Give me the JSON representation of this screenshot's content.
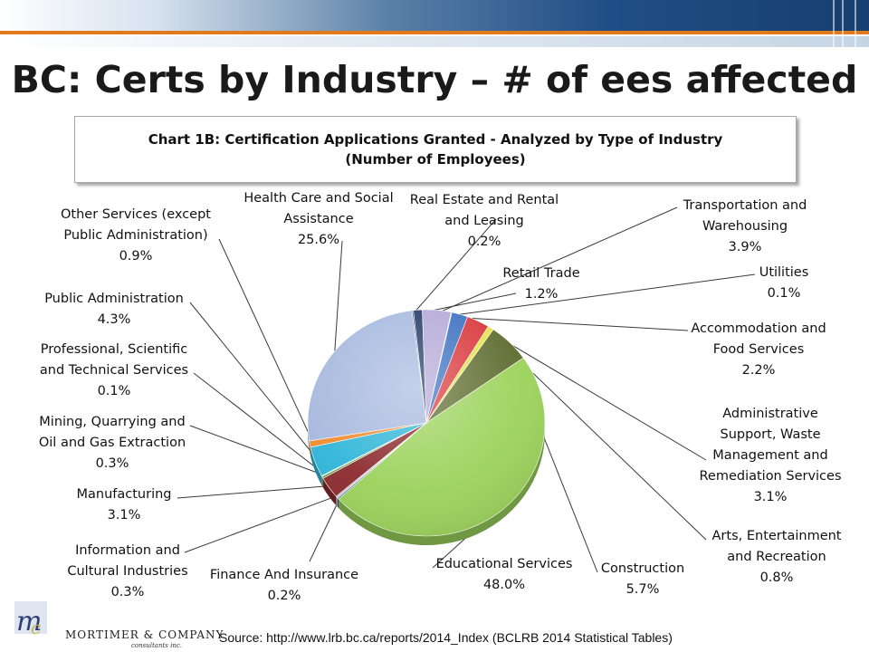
{
  "slide": {
    "title": "BC: Certs by Industry – # of ees affected",
    "source": "Source: http://www.lrb.bc.ca/reports/2014_Index (BCLRB 2014 Statistical Tables)",
    "logo_name": "MORTIMER & COMPANY",
    "logo_sub": "consultants inc."
  },
  "chart_data": {
    "type": "pie",
    "title_lines": [
      "Chart 1B: Certification  Applications Granted  - Analyzed by Type of Industry",
      "(Number of Employees)"
    ],
    "start_angle_deg": -97,
    "direction": "clockwise",
    "slices": [
      {
        "name": "Real Estate and Rental and Leasing",
        "label_lines": [
          "Real Estate and Rental",
          "and Leasing",
          "0.2%"
        ],
        "value": 0.2,
        "color": "#2e4d7a"
      },
      {
        "name": "Retail Trade",
        "label_lines": [
          "Retail Trade",
          "1.2%"
        ],
        "value": 1.2,
        "color": "#203864"
      },
      {
        "name": "Transportation and Warehousing",
        "label_lines": [
          "Transportation and",
          "Warehousing",
          "3.9%"
        ],
        "value": 3.9,
        "color": "#b4a7d6"
      },
      {
        "name": "Utilities",
        "label_lines": [
          "Utilities",
          "0.1%"
        ],
        "value": 0.1,
        "color": "#4bacc6"
      },
      {
        "name": "Accommodation and Food Services",
        "label_lines": [
          "Accommodation and",
          "Food Services",
          "2.2%"
        ],
        "value": 2.2,
        "color": "#3a6fc0"
      },
      {
        "name": "Administrative Support, Waste Management and Remediation Services",
        "label_lines": [
          "Administrative",
          "Support, Waste",
          "Management and",
          "Remediation Services",
          "3.1%"
        ],
        "value": 3.1,
        "color": "#d9363a"
      },
      {
        "name": "Arts, Entertainment and Recreation",
        "label_lines": [
          "Arts, Entertainment",
          "and Recreation",
          "0.8%"
        ],
        "value": 0.8,
        "color": "#e6e34a"
      },
      {
        "name": "Construction",
        "label_lines": [
          "Construction",
          "5.7%"
        ],
        "value": 5.7,
        "color": "#5d6b2e"
      },
      {
        "name": "Educational Services",
        "label_lines": [
          "Educational Services",
          "48.0%"
        ],
        "value": 48.0,
        "color": "#9bd25a"
      },
      {
        "name": "Finance And Insurance",
        "label_lines": [
          "Finance And Insurance",
          "0.2%"
        ],
        "value": 0.2,
        "color": "#3d6aa6"
      },
      {
        "name": "Information and Cultural Industries",
        "label_lines": [
          "Information and",
          "Cultural Industries",
          "0.3%"
        ],
        "value": 0.3,
        "color": "#c9c9c9"
      },
      {
        "name": "Manufacturing",
        "label_lines": [
          "Manufacturing",
          "3.1%"
        ],
        "value": 3.1,
        "color": "#8b2a2e"
      },
      {
        "name": "Mining, Quarrying and Oil and Gas Extraction",
        "label_lines": [
          "Mining, Quarrying and",
          "Oil and Gas Extraction",
          "0.3%"
        ],
        "value": 0.3,
        "color": "#6ba34a"
      },
      {
        "name": "Professional, Scientific and Technical Services",
        "label_lines": [
          "Professional, Scientific",
          "and Technical Services",
          "0.1%"
        ],
        "value": 0.1,
        "color": "#2f6f8a"
      },
      {
        "name": "Public Administration",
        "label_lines": [
          "Public Administration",
          "4.3%"
        ],
        "value": 4.3,
        "color": "#2fb5d8"
      },
      {
        "name": "Other Services (except Public Administration)",
        "label_lines": [
          "Other Services (except",
          "Public Administration)",
          "0.9%"
        ],
        "value": 0.9,
        "color": "#f08a2c"
      },
      {
        "name": "Health Care and Social Assistance",
        "label_lines": [
          "Health Care and Social",
          "Assistance",
          "25.6%"
        ],
        "value": 25.6,
        "color": "#a6b8de"
      }
    ]
  }
}
